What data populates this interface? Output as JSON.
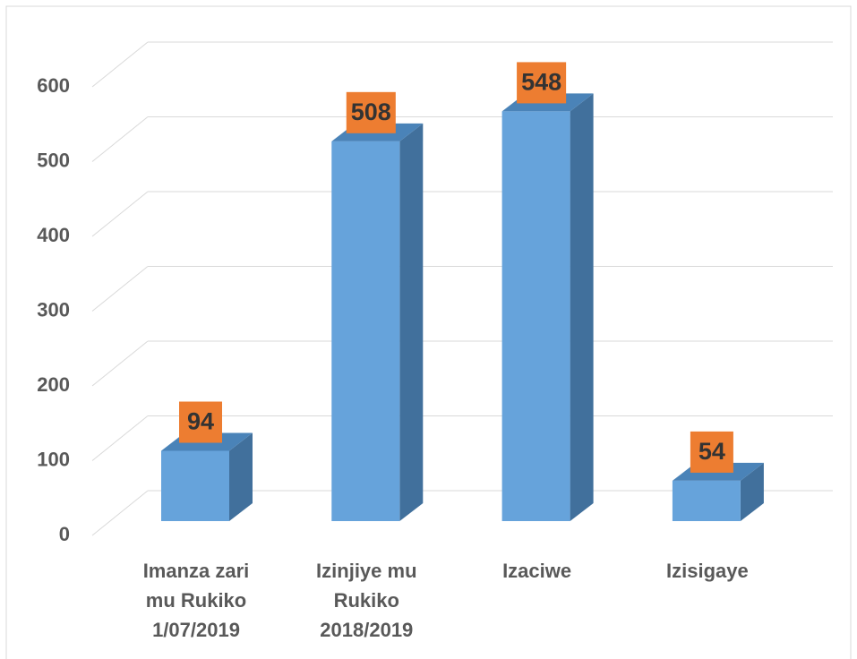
{
  "chart_data": {
    "type": "bar3d",
    "categories": [
      "Imanza zari mu Rukiko 1/07/2019",
      "Izinjiye mu Rukiko 2018/2019",
      "Izaciwe",
      "Izisigaye"
    ],
    "values": [
      94,
      508,
      548,
      54
    ],
    "color": "#66a3db",
    "label_color": "#ed7d31",
    "ylim": [
      0,
      600
    ],
    "yticks": [
      0,
      100,
      200,
      300,
      400,
      500,
      600
    ],
    "grid": true
  }
}
